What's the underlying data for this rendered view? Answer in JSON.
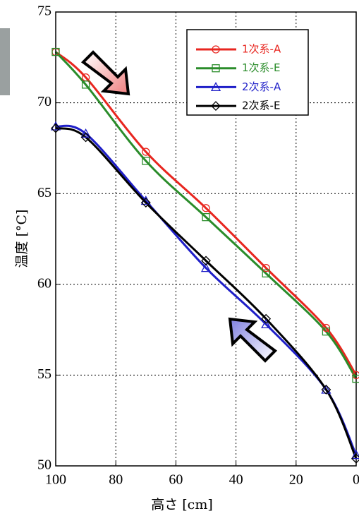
{
  "chart_data": {
    "type": "line",
    "x_label": "高さ [cm]",
    "y_label": "温度 [°C]",
    "x": [
      100,
      90,
      70,
      50,
      30,
      10,
      0
    ],
    "series": [
      {
        "name": "1次系-A",
        "color": "#e8261f",
        "marker": "circle",
        "values": [
          72.8,
          71.4,
          67.3,
          64.2,
          60.9,
          57.6,
          55.0
        ]
      },
      {
        "name": "1次系-E",
        "color": "#2a8c2a",
        "marker": "square",
        "values": [
          72.8,
          71.0,
          66.8,
          63.7,
          60.6,
          57.4,
          54.8
        ]
      },
      {
        "name": "2次系-A",
        "color": "#1f1fc8",
        "marker": "triangle",
        "values": [
          68.7,
          68.3,
          64.6,
          60.9,
          57.8,
          54.2,
          50.6
        ]
      },
      {
        "name": "2次系-E",
        "color": "#000000",
        "marker": "diamond",
        "values": [
          68.6,
          68.1,
          64.5,
          61.3,
          58.1,
          54.2,
          50.4
        ]
      }
    ],
    "xlim": [
      100,
      0
    ],
    "xticks": [
      100,
      80,
      60,
      40,
      20,
      0
    ],
    "ylim": [
      50,
      75
    ],
    "yticks": [
      50,
      55,
      60,
      65,
      70,
      75
    ],
    "grid": true,
    "legend": "upper right"
  }
}
